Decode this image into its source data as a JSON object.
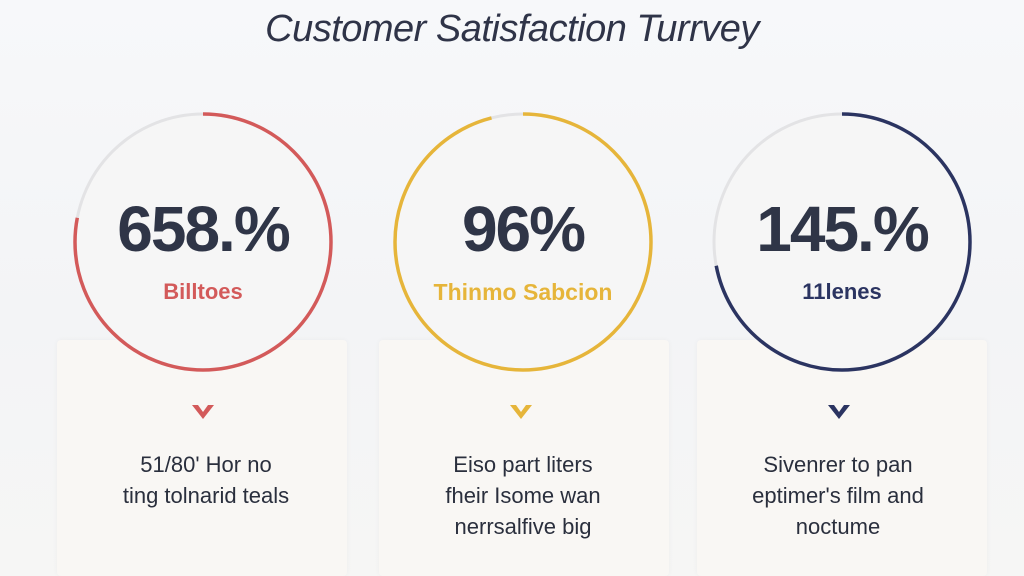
{
  "title": "Customer Satisfaction Turrvey",
  "cards": [
    {
      "value": "658.%",
      "label": "Billtoes",
      "color": "#d35a5a",
      "progress": 0.78,
      "description": [
        "51/80' Hor no",
        "ting tolnarid teals"
      ]
    },
    {
      "value": "96%",
      "label": "Thinmo Sabcion",
      "color": "#e6b53a",
      "progress": 0.96,
      "description": [
        "Eiso part liters",
        "fheir Isome wan",
        "nerrsalfive big"
      ]
    },
    {
      "value": "145.%",
      "label": "11lenes",
      "color": "#2b3461",
      "progress": 0.72,
      "description": [
        "Sivenrer to pan",
        "eptimer's film and",
        "noctume"
      ]
    }
  ]
}
